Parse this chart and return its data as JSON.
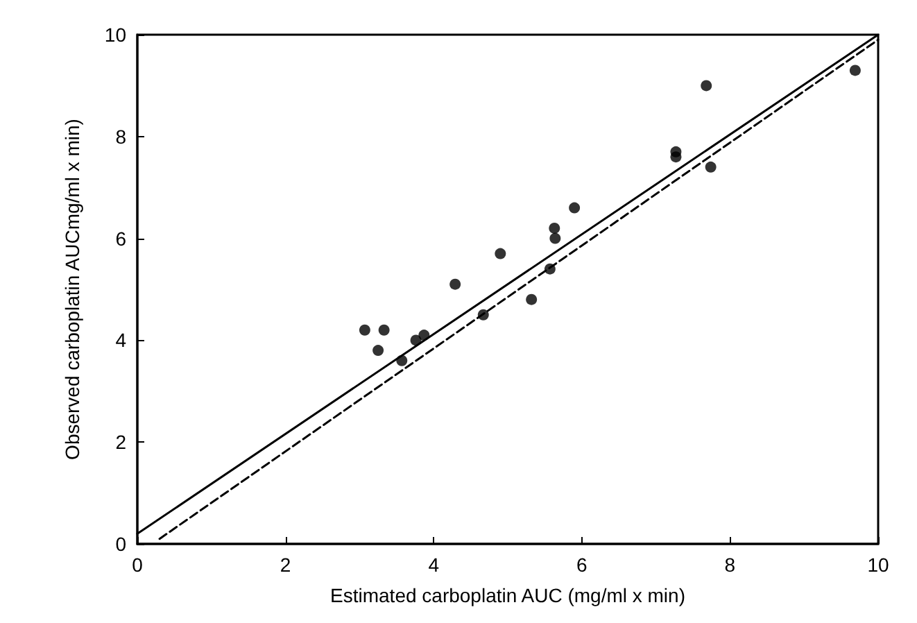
{
  "chart_data": {
    "type": "scatter",
    "xlabel": "Estimated carboplatin AUC (mg/ml x min)",
    "ylabel": "Observed carboplatin AUCmg/ml x min)",
    "xlim": [
      0,
      10
    ],
    "ylim": [
      0,
      10
    ],
    "xticks": [
      0,
      2,
      4,
      6,
      8,
      10
    ],
    "yticks": [
      0,
      2,
      4,
      6,
      8,
      10
    ],
    "grid": false,
    "marker": "circle",
    "series": [
      {
        "color": "#000000",
        "x": [
          3.07,
          3.33,
          3.25,
          3.57,
          3.76,
          3.87,
          4.29,
          4.67,
          4.9,
          5.32,
          5.57,
          5.63,
          5.64,
          5.9,
          7.68,
          9.69,
          7.27,
          7.27,
          7.74
        ],
        "values": [
          4.2,
          4.2,
          3.8,
          3.6,
          4,
          4.1,
          5.1,
          4.5,
          5.7,
          4.8,
          5.4,
          6.2,
          6,
          6.6,
          9,
          9.3,
          7.7,
          7.6,
          7.4
        ]
      },
      {
        "type": "line",
        "color": "#000000",
        "line_style": "solid",
        "marker": "none",
        "x": [
          0,
          10
        ],
        "values": [
          0.2,
          10
        ]
      },
      {
        "type": "line",
        "color": "#000000",
        "line_style": "dashed",
        "marker": "none",
        "x": [
          0.3,
          10
        ],
        "values": [
          0.1,
          9.9
        ]
      }
    ]
  }
}
